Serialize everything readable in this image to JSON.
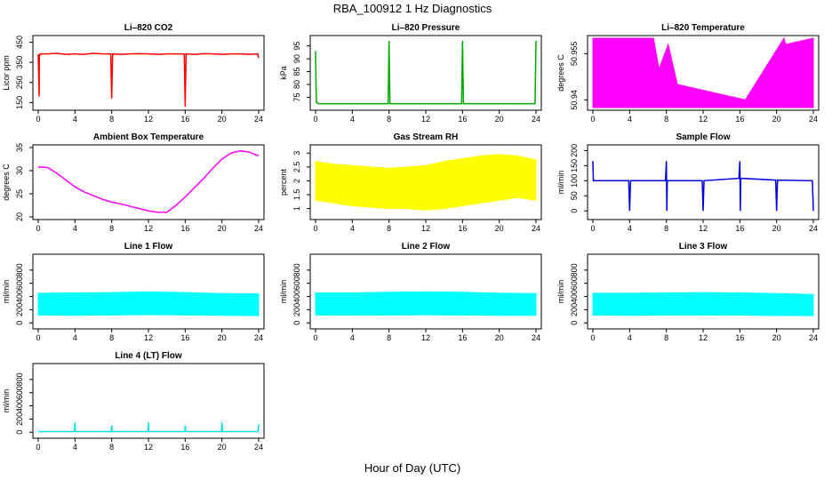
{
  "figure": {
    "title": "RBA_100912  1 Hz Diagnostics",
    "xlabel": "Hour of Day (UTC)"
  },
  "chart_data": [
    {
      "id": "co2",
      "type": "line",
      "title": "Li–820 CO2",
      "ylabel": "Licor ppm",
      "color": "#ff0000",
      "xlim": [
        0,
        24
      ],
      "ylim": [
        125,
        470
      ],
      "xticks": [
        0,
        4,
        8,
        12,
        16,
        20,
        24
      ],
      "yticks": [
        150,
        250,
        350,
        450
      ],
      "series": [
        {
          "x": [
            0,
            0.1,
            0.12,
            0.15,
            0.2,
            1,
            2,
            3,
            4,
            5,
            6,
            7,
            7.9,
            8,
            8.1,
            9,
            10,
            11,
            12,
            13,
            14,
            15,
            15.9,
            16,
            16.1,
            17,
            18,
            19,
            20,
            21,
            22,
            23,
            23.9,
            24
          ],
          "values": [
            390,
            180,
            390,
            385,
            392,
            392,
            395,
            390,
            392,
            390,
            395,
            392,
            392,
            170,
            392,
            390,
            392,
            393,
            392,
            390,
            392,
            392,
            392,
            130,
            392,
            390,
            393,
            392,
            390,
            392,
            392,
            390,
            392,
            372
          ]
        }
      ]
    },
    {
      "id": "pressure",
      "type": "line",
      "title": "Li–820 Pressure",
      "ylabel": "kPa",
      "color": "#00aa00",
      "xlim": [
        0,
        24
      ],
      "ylim": [
        71,
        98
      ],
      "xticks": [
        0,
        4,
        8,
        12,
        16,
        20,
        24
      ],
      "yticks": [
        75,
        80,
        85,
        90,
        95
      ],
      "series": [
        {
          "x": [
            0,
            0.05,
            0.1,
            0.3,
            7.9,
            8,
            8.1,
            15.9,
            16,
            16.1,
            23.9,
            24
          ],
          "values": [
            93,
            80,
            73,
            72.5,
            72.5,
            97,
            72.5,
            72.5,
            97,
            72.5,
            72.5,
            97
          ]
        }
      ]
    },
    {
      "id": "licor_temp",
      "type": "area",
      "title": "Li–820 Temperature",
      "ylabel": "degrees C",
      "color": "#ff00ff",
      "xlim": [
        0,
        24
      ],
      "ylim": [
        50.9375,
        50.96
      ],
      "xticks": [
        0,
        4,
        8,
        12,
        16,
        20,
        24
      ],
      "yticks": [
        50.94,
        50.955
      ],
      "series": [
        {
          "x": [
            0,
            6.6,
            7.2,
            8.2,
            9.2,
            16.6,
            20.8,
            21,
            24
          ],
          "values": [
            50.96,
            50.96,
            50.95,
            50.958,
            50.945,
            50.94,
            50.96,
            50.958,
            50.96
          ]
        }
      ]
    },
    {
      "id": "box_temp",
      "type": "line",
      "title": "Ambient Box Temperature",
      "ylabel": "degrees C",
      "color": "#ff00ff",
      "xlim": [
        0,
        24
      ],
      "ylim": [
        20,
        35
      ],
      "xticks": [
        0,
        4,
        8,
        12,
        16,
        20,
        24
      ],
      "yticks": [
        20,
        25,
        30,
        35
      ],
      "series": [
        {
          "x": [
            0,
            1,
            2,
            3,
            4,
            5,
            6,
            7,
            8,
            9,
            10,
            11,
            12,
            13,
            14,
            15,
            16,
            17,
            18,
            19,
            20,
            21,
            22,
            23,
            24
          ],
          "values": [
            30.8,
            30.7,
            29.5,
            28,
            26.5,
            25.4,
            24.6,
            23.8,
            23.2,
            22.8,
            22.3,
            21.8,
            21.3,
            21,
            21,
            22.5,
            24.3,
            26.3,
            28.3,
            30.5,
            32.5,
            33.8,
            34.3,
            34,
            33.2
          ]
        }
      ]
    },
    {
      "id": "rh",
      "type": "area",
      "title": "Gas Stream RH",
      "ylabel": "percent",
      "color": "#ffff00",
      "xlim": [
        0,
        24
      ],
      "ylim": [
        0.7,
        3.2
      ],
      "xticks": [
        0,
        4,
        8,
        12,
        16,
        20,
        24
      ],
      "yticks": [
        1.0,
        1.5,
        2.0,
        2.5,
        3.0
      ],
      "series": [
        {
          "name": "upper",
          "x": [
            0,
            2,
            4,
            6,
            8,
            10,
            12,
            14,
            16,
            18,
            20,
            22,
            24
          ],
          "values": [
            2.7,
            2.6,
            2.55,
            2.5,
            2.45,
            2.5,
            2.55,
            2.7,
            2.8,
            2.9,
            2.95,
            2.9,
            2.75
          ]
        },
        {
          "name": "lower",
          "x": [
            0,
            2,
            4,
            6,
            8,
            10,
            12,
            14,
            16,
            18,
            20,
            22,
            24
          ],
          "values": [
            1.3,
            1.2,
            1.1,
            1.05,
            1.0,
            1.0,
            0.95,
            1.0,
            1.1,
            1.2,
            1.3,
            1.4,
            1.3
          ]
        }
      ]
    },
    {
      "id": "sample_flow",
      "type": "line",
      "title": "Sample Flow",
      "ylabel": "ml/min",
      "color": "#0000dd",
      "xlim": [
        0,
        24
      ],
      "ylim": [
        -20,
        210
      ],
      "xticks": [
        0,
        4,
        8,
        12,
        16,
        20,
        24
      ],
      "yticks": [
        0,
        50,
        100,
        150,
        200
      ],
      "series": [
        {
          "x": [
            0,
            0.05,
            0.1,
            1,
            3.9,
            4,
            4.1,
            7.9,
            8,
            8.05,
            8.1,
            11.9,
            12,
            12.1,
            15.9,
            16,
            16.05,
            16.1,
            19.9,
            20,
            20.1,
            23.9,
            24
          ],
          "values": [
            165,
            100,
            100,
            100,
            100,
            0,
            100,
            100,
            165,
            0,
            100,
            100,
            0,
            100,
            108,
            165,
            0,
            108,
            102,
            0,
            102,
            100,
            0
          ]
        }
      ]
    },
    {
      "id": "line1",
      "type": "area",
      "title": "Line 1 Flow",
      "ylabel": "ml/min",
      "color": "#00ffff",
      "xlim": [
        0,
        24
      ],
      "ylim": [
        -50,
        1000
      ],
      "xticks": [
        0,
        4,
        8,
        12,
        16,
        20,
        24
      ],
      "yticks": [
        0,
        200,
        400,
        600,
        800
      ],
      "series": [
        {
          "name": "upper",
          "x": [
            0,
            4,
            8,
            12,
            16,
            20,
            24
          ],
          "values": [
            450,
            455,
            460,
            470,
            460,
            445,
            440
          ]
        },
        {
          "name": "lower",
          "x": [
            0,
            4,
            8,
            12,
            16,
            20,
            24
          ],
          "values": [
            120,
            115,
            120,
            125,
            120,
            115,
            110
          ]
        }
      ]
    },
    {
      "id": "line2",
      "type": "area",
      "title": "Line 2 Flow",
      "ylabel": "ml/min",
      "color": "#00ffff",
      "xlim": [
        0,
        24
      ],
      "ylim": [
        -50,
        1000
      ],
      "xticks": [
        0,
        4,
        8,
        12,
        16,
        20,
        24
      ],
      "yticks": [
        0,
        200,
        400,
        600,
        800
      ],
      "series": [
        {
          "name": "upper",
          "x": [
            0,
            4,
            8,
            12,
            16,
            20,
            24
          ],
          "values": [
            455,
            455,
            465,
            470,
            465,
            450,
            445
          ]
        },
        {
          "name": "lower",
          "x": [
            0,
            4,
            8,
            12,
            16,
            20,
            24
          ],
          "values": [
            120,
            118,
            120,
            122,
            120,
            115,
            115
          ]
        }
      ]
    },
    {
      "id": "line3",
      "type": "area",
      "title": "Line 3 Flow",
      "ylabel": "ml/min",
      "color": "#00ffff",
      "xlim": [
        0,
        24
      ],
      "ylim": [
        -50,
        1000
      ],
      "xticks": [
        0,
        4,
        8,
        12,
        16,
        20,
        24
      ],
      "yticks": [
        0,
        200,
        400,
        600,
        800
      ],
      "series": [
        {
          "name": "upper",
          "x": [
            0,
            4,
            8,
            12,
            16,
            20,
            24
          ],
          "values": [
            450,
            450,
            455,
            460,
            455,
            445,
            430
          ]
        },
        {
          "name": "lower",
          "x": [
            0,
            4,
            8,
            12,
            16,
            20,
            24
          ],
          "values": [
            118,
            115,
            118,
            120,
            118,
            112,
            110
          ]
        }
      ]
    },
    {
      "id": "line4",
      "type": "line",
      "title": "Line 4 (LT) Flow",
      "ylabel": "ml/min",
      "color": "#00e0e0",
      "xlim": [
        0,
        24
      ],
      "ylim": [
        -50,
        1000
      ],
      "xticks": [
        0,
        4,
        8,
        12,
        16,
        20,
        24
      ],
      "yticks": [
        0,
        200,
        400,
        600,
        800
      ],
      "series": [
        {
          "x": [
            0,
            3.95,
            4,
            4.05,
            7.95,
            8,
            8.05,
            11.95,
            12,
            12.05,
            15.95,
            16,
            16.05,
            19.95,
            20,
            20.05,
            23.95,
            24
          ],
          "values": [
            10,
            10,
            150,
            10,
            10,
            100,
            10,
            10,
            150,
            10,
            10,
            100,
            10,
            10,
            150,
            10,
            10,
            120
          ]
        }
      ]
    }
  ]
}
